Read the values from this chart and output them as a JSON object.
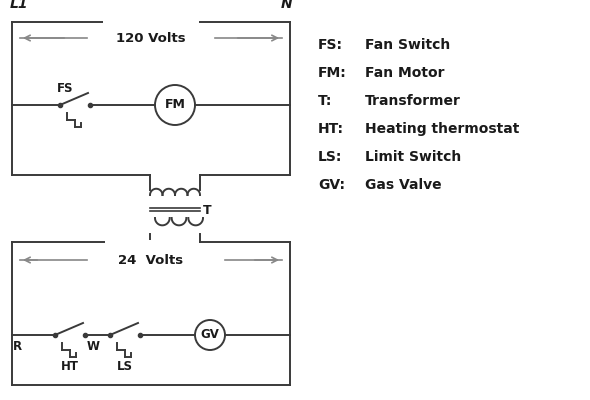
{
  "bg_color": "#ffffff",
  "line_color": "#3a3a3a",
  "arrow_color": "#888888",
  "text_color": "#1a1a1a",
  "legend_items": [
    [
      "FS:",
      "Fan Switch"
    ],
    [
      "FM:",
      "Fan Motor"
    ],
    [
      "T:",
      "Transformer"
    ],
    [
      "HT:",
      "Heating thermostat"
    ],
    [
      "LS:",
      "Limit Switch"
    ],
    [
      "GV:",
      "Gas Valve"
    ]
  ]
}
